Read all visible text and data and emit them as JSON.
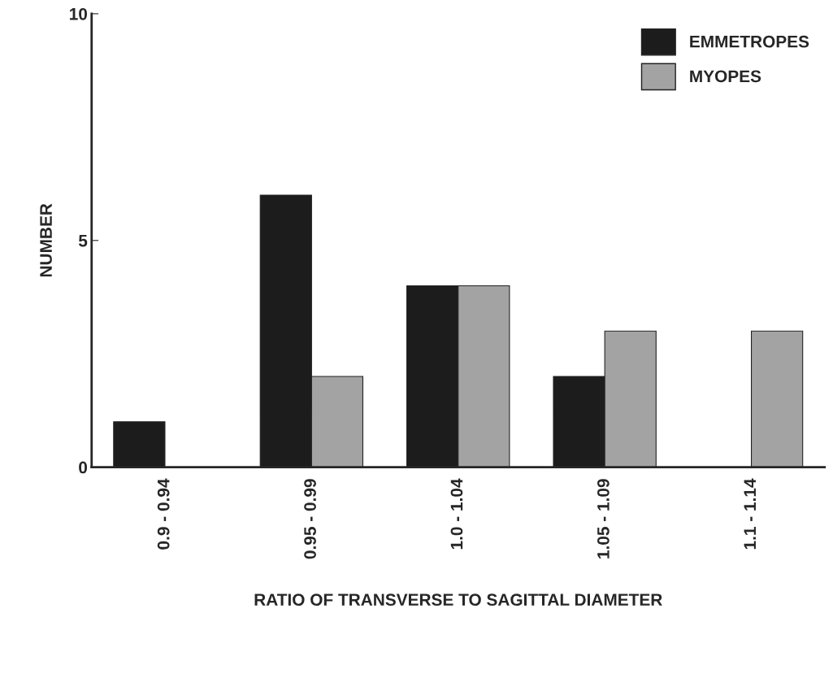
{
  "chart_data": {
    "type": "bar",
    "xlabel": "RATIO OF TRANSVERSE TO SAGITTAL DIAMETER",
    "ylabel": "NUMBER",
    "categories": [
      "0.9 - 0.94",
      "0.95 - 0.99",
      "1.0 - 1.04",
      "1.05 - 1.09",
      "1.1 - 1.14"
    ],
    "series": [
      {
        "name": "EMMETROPES",
        "color": "#1c1c1c",
        "values": [
          1,
          6,
          4,
          2,
          null
        ]
      },
      {
        "name": "MYOPES",
        "color": "#a3a3a3",
        "values": [
          null,
          2,
          4,
          3,
          3
        ]
      }
    ],
    "ylim": [
      0,
      10
    ],
    "yticks": [
      0,
      5,
      10
    ],
    "grid": false,
    "legend": "top right"
  }
}
